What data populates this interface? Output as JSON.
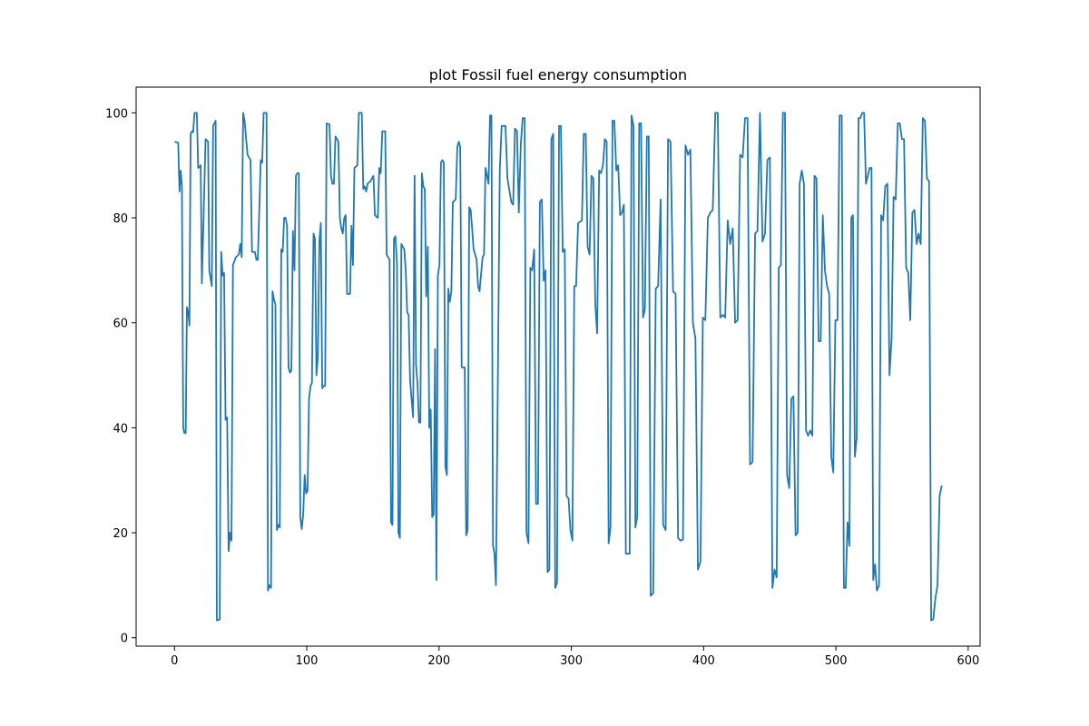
{
  "chart_data": {
    "type": "line",
    "title": "plot Fossil fuel energy consumption",
    "x": [
      0,
      2.8,
      3.8,
      4.7,
      5.6,
      6.6,
      7.5,
      8.5,
      9.4,
      10.4,
      11.3,
      12.2,
      13.2,
      14.1,
      15.1,
      16.9,
      17.9,
      19.8,
      20.7,
      23.5,
      25.4,
      26.3,
      28.2,
      29.2,
      31.1,
      32,
      34.2,
      35.3,
      36.4,
      37.5,
      38.6,
      39.8,
      40.9,
      42,
      43.1,
      44.2,
      46.4,
      48.6,
      49.7,
      50.8,
      51.9,
      53,
      55.2,
      57.5,
      58.6,
      60.8,
      61.9,
      63,
      65.2,
      66.3,
      67.4,
      69.6,
      70.7,
      71.9,
      73,
      74.1,
      75.2,
      76.3,
      77.4,
      78.5,
      79.6,
      80.7,
      81.8,
      82.9,
      84,
      85.1,
      86.2,
      87.3,
      88.4,
      89.5,
      90.7,
      91.8,
      92.9,
      94,
      95.1,
      96.2,
      97.3,
      98.4,
      99.5,
      100.6,
      101.7,
      102.8,
      103.9,
      105.1,
      106.2,
      107.3,
      108.4,
      109.5,
      110.6,
      111.7,
      112.8,
      113.9,
      115,
      117.2,
      118.3,
      119.4,
      120.5,
      121.7,
      123.9,
      125,
      126.1,
      127.2,
      128.3,
      129.4,
      130.5,
      132.7,
      133.8,
      134.9,
      136,
      138.2,
      139.4,
      141.6,
      142.7,
      143.8,
      144.9,
      146,
      148.2,
      150.4,
      151.5,
      153.7,
      154.8,
      155.9,
      157.1,
      159.3,
      160.4,
      162.6,
      163.7,
      164.8,
      165.9,
      167,
      168.2,
      169.3,
      170.4,
      171.5,
      173.7,
      174.8,
      175.9,
      177,
      178.1,
      179.2,
      180.4,
      181.5,
      182.6,
      183.7,
      184.8,
      185.9,
      187,
      188.1,
      189.2,
      190.3,
      191.5,
      192.6,
      193.7,
      194.8,
      195.9,
      197,
      198,
      199.1,
      200.3,
      201.4,
      202.5,
      203.6,
      204.8,
      205.9,
      207,
      208.1,
      209.3,
      210.4,
      212.6,
      213.8,
      214.9,
      216,
      217.1,
      219.4,
      220.5,
      221.6,
      222.8,
      223.9,
      225,
      226.1,
      228.4,
      229.5,
      230.6,
      232.9,
      234,
      235.1,
      236.3,
      237.4,
      238.5,
      239.6,
      240.8,
      241.9,
      243,
      245.9,
      247.3,
      250.2,
      251.7,
      254.6,
      256,
      257.4,
      258.9,
      260.3,
      261.8,
      263.2,
      264.7,
      266.1,
      267.6,
      269,
      270.4,
      271.9,
      273.3,
      274.8,
      276.2,
      277.7,
      279.1,
      280.5,
      282,
      283.4,
      284.9,
      286.3,
      287.8,
      289.2,
      290.7,
      292.1,
      293.5,
      295,
      296.4,
      297.9,
      299.3,
      300.8,
      302.2,
      303.6,
      305.1,
      308,
      309.4,
      310.9,
      312.3,
      313.8,
      315.2,
      316.6,
      318.1,
      319.5,
      321,
      322.4,
      323.9,
      325.3,
      326.7,
      328.2,
      329.6,
      331.1,
      332.5,
      334,
      335.4,
      336.9,
      338.3,
      339.7,
      341.2,
      342.6,
      344.1,
      345.5,
      347,
      348.4,
      349.8,
      351.3,
      352.7,
      354.2,
      355.6,
      357.1,
      358.5,
      360,
      361.9,
      363.8,
      365.6,
      367.5,
      369.4,
      371.3,
      373.1,
      375,
      376.9,
      378.8,
      380.7,
      382.5,
      384.4,
      386.3,
      388.2,
      390,
      391.9,
      393.8,
      395.7,
      397.6,
      399.4,
      401.3,
      403.2,
      405.1,
      406.9,
      408.8,
      410.7,
      412.6,
      414.5,
      416.3,
      418.2,
      420.1,
      422,
      423.8,
      425.7,
      427.6,
      429.5,
      431.3,
      433.2,
      435.1,
      437,
      438.9,
      440.7,
      442.6,
      444.5,
      446.4,
      448.2,
      450.1,
      452,
      453.6,
      455.2,
      456.8,
      458.4,
      459.9,
      461.5,
      463.1,
      464.7,
      466.3,
      467.9,
      469.5,
      471.1,
      472.6,
      474.2,
      475.8,
      477.4,
      479,
      480.6,
      482.2,
      483.8,
      485.3,
      486.9,
      488.5,
      490.1,
      491.7,
      493.3,
      494.9,
      496.5,
      498,
      499.6,
      501.2,
      502.8,
      504.4,
      506,
      507.4,
      508.8,
      510.2,
      511.6,
      512.9,
      514.3,
      515.7,
      517.1,
      518.5,
      519.9,
      521.3,
      522.7,
      524.1,
      525.5,
      526.9,
      528.2,
      529.6,
      531,
      532.6,
      534.2,
      535.7,
      537.3,
      538.9,
      540.5,
      542.1,
      543.6,
      545.2,
      546.8,
      548.3,
      549.9,
      551.5,
      553.1,
      554.7,
      556.2,
      557.8,
      559.4,
      561,
      562.5,
      564.1,
      565.7,
      567.3,
      568.8,
      570.4,
      572,
      573.6,
      575.2,
      576.8,
      578.4,
      580
    ],
    "series": [
      {
        "color": "#1f77b4",
        "values": [
          94.5,
          94.3,
          85,
          89,
          86,
          40,
          39,
          39,
          63,
          62,
          59.5,
          96,
          96.5,
          96.3,
          100,
          100,
          89.5,
          90,
          67.5,
          95,
          94.5,
          70,
          67,
          97.5,
          98.5,
          3.3,
          3.5,
          73.5,
          69,
          69.5,
          41.5,
          42,
          16.5,
          20,
          18.5,
          71,
          72.5,
          73,
          75,
          72.5,
          100,
          98.5,
          92,
          91,
          73.5,
          73.5,
          72,
          72,
          91,
          90.5,
          100,
          100,
          9,
          10,
          9.5,
          66,
          64.5,
          63.5,
          20.5,
          21.5,
          21,
          74,
          73.5,
          80,
          80,
          78.5,
          51.5,
          50.5,
          51,
          77.5,
          70,
          88,
          88.5,
          88.5,
          23,
          20.7,
          23.5,
          31,
          27.5,
          28,
          45.5,
          48,
          48.5,
          77,
          76,
          50,
          53.5,
          75.5,
          79,
          47.5,
          48,
          48,
          98,
          97.8,
          88,
          86.5,
          86.5,
          95.5,
          94.5,
          80,
          78,
          77,
          80,
          80.5,
          65.5,
          65.5,
          78.5,
          71,
          89.5,
          90,
          100,
          100,
          85.5,
          86,
          85,
          86.5,
          87,
          88,
          80.5,
          80,
          89.5,
          88.5,
          96.5,
          96.5,
          73,
          72,
          22,
          21.5,
          76,
          76.5,
          71.5,
          20,
          19,
          75,
          74,
          70,
          62,
          61.5,
          49,
          45.5,
          42,
          88,
          52,
          48.5,
          41,
          41,
          88.5,
          86,
          85.5,
          65,
          74.5,
          40,
          43.5,
          23,
          23.5,
          55,
          11,
          69,
          71,
          90.5,
          91,
          90.5,
          32.5,
          31,
          66.5,
          64,
          66,
          83,
          83.5,
          93.5,
          94.5,
          93.5,
          51.5,
          51.5,
          19.5,
          20.5,
          82,
          81.5,
          78,
          74,
          72,
          67,
          66,
          72.5,
          73,
          89.5,
          88,
          86.5,
          99.5,
          99.5,
          17.5,
          16,
          10,
          89,
          97.5,
          97.5,
          87.5,
          83,
          82.5,
          97,
          96.5,
          81,
          94,
          99,
          99,
          20,
          18,
          70.5,
          70,
          74,
          25.5,
          25.5,
          83,
          83.5,
          68,
          70,
          12.5,
          13,
          95,
          96,
          9.5,
          10.5,
          97.5,
          97.5,
          73.5,
          74,
          27,
          26.5,
          20.5,
          18.5,
          67,
          67,
          79,
          79.5,
          96,
          96,
          74.5,
          73,
          88,
          87.5,
          63.5,
          58,
          89,
          88.5,
          90,
          95,
          94.5,
          18,
          21,
          98.5,
          98.5,
          89,
          90,
          80.5,
          81,
          82.5,
          16,
          16,
          16,
          99.5,
          97.5,
          21,
          23,
          98,
          98,
          61,
          62.5,
          95.5,
          95.5,
          8,
          8.5,
          66.5,
          67,
          83.5,
          21.5,
          20.5,
          95,
          94.5,
          66,
          65.5,
          19,
          18.5,
          18.7,
          93.8,
          92,
          93,
          60,
          57,
          13,
          14.5,
          61,
          60.5,
          80,
          81,
          81.5,
          100,
          100,
          61,
          61.5,
          61,
          79.5,
          75,
          78,
          60,
          60.5,
          92,
          91.5,
          99,
          99,
          33,
          33.5,
          77,
          77.5,
          100,
          75.5,
          77,
          91,
          91.5,
          9.5,
          13,
          11.5,
          70.5,
          71,
          100,
          100,
          31,
          28.5,
          45.5,
          46,
          19.5,
          20,
          86.5,
          89,
          86.5,
          39.5,
          38.5,
          39.5,
          38.5,
          88,
          87.5,
          56.5,
          56.5,
          80.5,
          70,
          67,
          65.5,
          34.5,
          31.5,
          60.5,
          60.5,
          99.5,
          99.5,
          9.5,
          9.5,
          22,
          17.5,
          80,
          80.5,
          34.5,
          38,
          99,
          99,
          100,
          100,
          86.5,
          88,
          89.5,
          89.5,
          11,
          14,
          9,
          10,
          80.5,
          79.5,
          86,
          86.5,
          50,
          57,
          84,
          83.5,
          98,
          98,
          95,
          95,
          70.5,
          69.5,
          60.5,
          81,
          81.5,
          75,
          77,
          75,
          99,
          98.5,
          87.5,
          87,
          3.3,
          3.5,
          7.5,
          10,
          27,
          29
        ]
      }
    ],
    "xlim": [
      -29,
      609
    ],
    "ylim": [
      -1.6,
      104.9
    ],
    "xticks": [
      0,
      100,
      200,
      300,
      400,
      500,
      600
    ],
    "yticks": [
      0,
      20,
      40,
      60,
      80,
      100
    ]
  }
}
